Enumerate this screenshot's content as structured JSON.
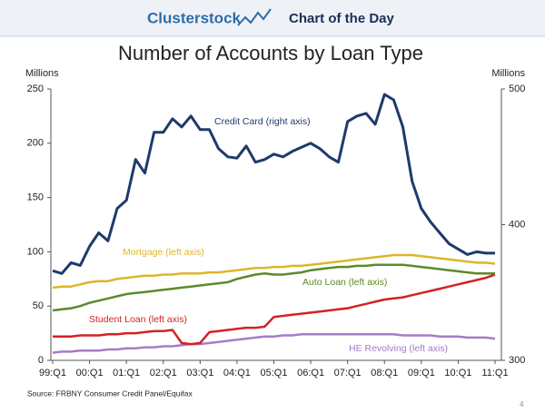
{
  "header": {
    "brand": "Clusterstock",
    "tagline": "Chart of the Day"
  },
  "chart_data": {
    "type": "line",
    "title": "Number of Accounts by Loan Type",
    "y_label": "Millions",
    "y2_label": "Millions",
    "source": "Source: FRBNY Consumer Credit Panel/Equifax",
    "page_number": "4",
    "categories": [
      "99:Q1",
      null,
      null,
      null,
      "00:Q1",
      null,
      null,
      null,
      "01:Q1",
      null,
      null,
      null,
      "02:Q1",
      null,
      null,
      null,
      "03:Q1",
      null,
      null,
      null,
      "04:Q1",
      null,
      null,
      null,
      "05:Q1",
      null,
      null,
      null,
      "06:Q1",
      null,
      null,
      null,
      "07:Q1",
      null,
      null,
      null,
      "08:Q1",
      null,
      null,
      null,
      "09:Q1",
      null,
      null,
      null,
      "10:Q1",
      null,
      null,
      null,
      "11:Q1"
    ],
    "ylim": [
      0,
      250
    ],
    "yticks": [
      0,
      50,
      100,
      150,
      200,
      250
    ],
    "y2lim": [
      300,
      500
    ],
    "y2ticks": [
      300,
      400,
      500
    ],
    "grid": false,
    "series": [
      {
        "name": "Credit Card (right axis)",
        "color": "#1f3a6b",
        "axis": "y2",
        "values": [
          366,
          364,
          372,
          370,
          384,
          394,
          388,
          412,
          418,
          448,
          438,
          468,
          468,
          478,
          472,
          480,
          470,
          470,
          456,
          450,
          449,
          458,
          446,
          448,
          452,
          450,
          454,
          457,
          460,
          456,
          450,
          446,
          476,
          480,
          482,
          474,
          496,
          492,
          472,
          432,
          412,
          402,
          394,
          386,
          382,
          378,
          380,
          379,
          379
        ]
      },
      {
        "name": "Mortgage (left axis)",
        "color": "#dcb62a",
        "values": [
          67,
          68,
          68,
          70,
          72,
          73,
          73,
          75,
          76,
          77,
          78,
          78,
          79,
          79,
          80,
          80,
          80,
          81,
          81,
          82,
          83,
          84,
          85,
          85,
          86,
          86,
          87,
          87,
          88,
          89,
          90,
          91,
          92,
          93,
          94,
          95,
          96,
          97,
          97,
          97,
          96,
          95,
          94,
          93,
          92,
          91,
          90,
          90,
          89
        ]
      },
      {
        "name": "Auto Loan (left axis)",
        "color": "#5b8a2c",
        "values": [
          46,
          47,
          48,
          50,
          53,
          55,
          57,
          59,
          61,
          62,
          63,
          64,
          65,
          66,
          67,
          68,
          69,
          70,
          71,
          72,
          75,
          77,
          79,
          80,
          79,
          79,
          80,
          81,
          83,
          84,
          85,
          86,
          86,
          87,
          87,
          88,
          88,
          88,
          88,
          87,
          86,
          85,
          84,
          83,
          82,
          81,
          80,
          80,
          80
        ]
      },
      {
        "name": "Student Loan (left axis)",
        "color": "#d42222",
        "values": [
          22,
          22,
          22,
          23,
          23,
          23,
          24,
          24,
          25,
          25,
          26,
          27,
          27,
          28,
          16,
          15,
          16,
          26,
          27,
          28,
          29,
          30,
          30,
          31,
          40,
          41,
          42,
          43,
          44,
          45,
          46,
          47,
          48,
          50,
          52,
          54,
          56,
          57,
          58,
          60,
          62,
          64,
          66,
          68,
          70,
          72,
          74,
          76,
          79
        ]
      },
      {
        "name": "HE Revolving (left axis)",
        "color": "#a67cc6",
        "values": [
          7,
          8,
          8,
          9,
          9,
          9,
          10,
          10,
          11,
          11,
          12,
          12,
          13,
          13,
          14,
          15,
          15,
          16,
          17,
          18,
          19,
          20,
          21,
          22,
          22,
          23,
          23,
          24,
          24,
          24,
          24,
          24,
          24,
          24,
          24,
          24,
          24,
          24,
          23,
          23,
          23,
          23,
          22,
          22,
          22,
          21,
          21,
          21,
          20
        ]
      }
    ]
  }
}
